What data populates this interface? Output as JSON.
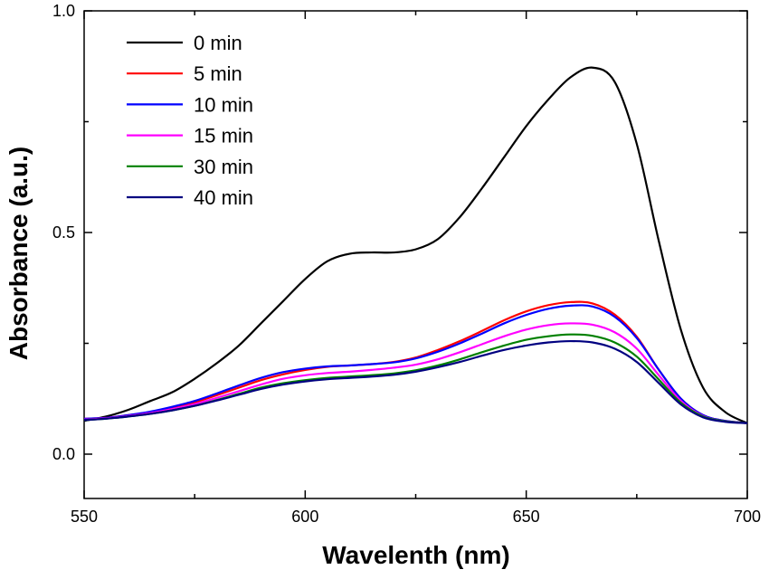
{
  "chart_data": {
    "type": "line",
    "title": "",
    "xlabel": "Wavelenth (nm)",
    "ylabel": "Absorbance (a.u.)",
    "xlim": [
      550,
      700
    ],
    "ylim": [
      -0.1,
      1.0
    ],
    "xticks": [
      550,
      600,
      650,
      700
    ],
    "xtick_labels": [
      "550",
      "600",
      "650",
      "700"
    ],
    "xminor_ticks": [
      575,
      625,
      675
    ],
    "yticks": [
      0.0,
      0.5,
      1.0
    ],
    "ytick_labels": [
      "0.0",
      "0.5",
      "1.0"
    ],
    "yminor_ticks": [
      0.25,
      0.75
    ],
    "grid": false,
    "legend_position": "top-left",
    "x": [
      550,
      555,
      560,
      565,
      570,
      575,
      580,
      585,
      590,
      595,
      600,
      605,
      610,
      615,
      620,
      625,
      630,
      635,
      640,
      645,
      650,
      655,
      660,
      665,
      670,
      675,
      680,
      685,
      690,
      695,
      700
    ],
    "series": [
      {
        "name": "0 min",
        "color": "#000000",
        "values": [
          0.075,
          0.085,
          0.1,
          0.12,
          0.14,
          0.17,
          0.205,
          0.245,
          0.295,
          0.345,
          0.395,
          0.435,
          0.452,
          0.455,
          0.455,
          0.462,
          0.485,
          0.535,
          0.6,
          0.67,
          0.74,
          0.8,
          0.85,
          0.872,
          0.84,
          0.7,
          0.48,
          0.28,
          0.15,
          0.095,
          0.07
        ]
      },
      {
        "name": "5 min",
        "color": "#ff0000",
        "values": [
          0.08,
          0.082,
          0.088,
          0.095,
          0.105,
          0.117,
          0.133,
          0.15,
          0.167,
          0.18,
          0.19,
          0.197,
          0.2,
          0.203,
          0.208,
          0.218,
          0.235,
          0.255,
          0.278,
          0.302,
          0.322,
          0.336,
          0.343,
          0.34,
          0.315,
          0.265,
          0.19,
          0.125,
          0.088,
          0.075,
          0.07
        ]
      },
      {
        "name": "10 min",
        "color": "#0000ff",
        "values": [
          0.08,
          0.082,
          0.088,
          0.096,
          0.107,
          0.12,
          0.137,
          0.155,
          0.172,
          0.185,
          0.193,
          0.198,
          0.2,
          0.203,
          0.207,
          0.216,
          0.231,
          0.25,
          0.272,
          0.295,
          0.314,
          0.328,
          0.335,
          0.333,
          0.31,
          0.262,
          0.19,
          0.125,
          0.088,
          0.075,
          0.07
        ]
      },
      {
        "name": "15 min",
        "color": "#ff00ff",
        "values": [
          0.078,
          0.081,
          0.086,
          0.093,
          0.102,
          0.113,
          0.127,
          0.142,
          0.157,
          0.17,
          0.178,
          0.183,
          0.186,
          0.19,
          0.195,
          0.202,
          0.214,
          0.23,
          0.248,
          0.266,
          0.281,
          0.291,
          0.295,
          0.292,
          0.275,
          0.238,
          0.178,
          0.12,
          0.086,
          0.074,
          0.07
        ]
      },
      {
        "name": "30 min",
        "color": "#008000",
        "values": [
          0.077,
          0.08,
          0.085,
          0.091,
          0.099,
          0.109,
          0.122,
          0.136,
          0.15,
          0.16,
          0.167,
          0.172,
          0.175,
          0.178,
          0.182,
          0.189,
          0.2,
          0.214,
          0.23,
          0.245,
          0.258,
          0.266,
          0.27,
          0.267,
          0.252,
          0.22,
          0.168,
          0.116,
          0.085,
          0.074,
          0.07
        ]
      },
      {
        "name": "40 min",
        "color": "#000080",
        "values": [
          0.077,
          0.08,
          0.085,
          0.091,
          0.099,
          0.109,
          0.121,
          0.134,
          0.147,
          0.157,
          0.164,
          0.169,
          0.172,
          0.175,
          0.179,
          0.186,
          0.196,
          0.208,
          0.222,
          0.235,
          0.245,
          0.252,
          0.255,
          0.252,
          0.238,
          0.208,
          0.16,
          0.112,
          0.083,
          0.073,
          0.07
        ]
      }
    ]
  }
}
